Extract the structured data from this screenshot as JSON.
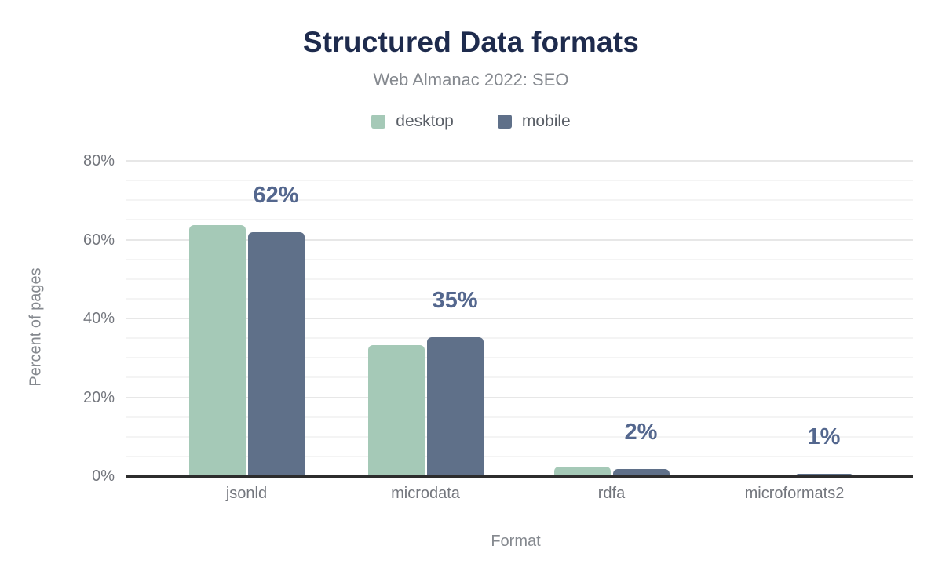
{
  "chart_data": {
    "type": "bar",
    "title": "Structured Data formats",
    "subtitle": "Web Almanac 2022: SEO",
    "xlabel": "Format",
    "ylabel": "Percent of pages",
    "categories": [
      "jsonld",
      "microdata",
      "rdfa",
      "microformats2"
    ],
    "series": [
      {
        "name": "desktop",
        "color": "#a5c9b7",
        "values": [
          63.6,
          33.3,
          2.3,
          0.1
        ]
      },
      {
        "name": "mobile",
        "color": "#5f7089",
        "values": [
          61.9,
          35.3,
          1.8,
          0.6
        ]
      }
    ],
    "annotations": [
      "62%",
      "35%",
      "2%",
      "1%"
    ],
    "annotation_series": "mobile",
    "ylim": [
      0,
      80
    ],
    "yticks": [
      {
        "value": 0,
        "label": "0%"
      },
      {
        "value": 20,
        "label": "20%"
      },
      {
        "value": 40,
        "label": "40%"
      },
      {
        "value": 60,
        "label": "60%"
      },
      {
        "value": 80,
        "label": "80%"
      }
    ],
    "minor_grid_step": 5,
    "major_grid_step": 20,
    "grid": true,
    "legend_position": "top"
  },
  "colors": {
    "background": "#ffffff",
    "title_text": "#1e2b4d",
    "subtitle_text": "#85898f",
    "legend_text": "#595e66",
    "tick_text": "#73767d",
    "axis_label_text": "#85898f",
    "annotation_text": "#54678e",
    "grid_minor": "#f4f4f4",
    "grid_major": "#e7e7e7",
    "axis_line": "#2d2d2d"
  }
}
